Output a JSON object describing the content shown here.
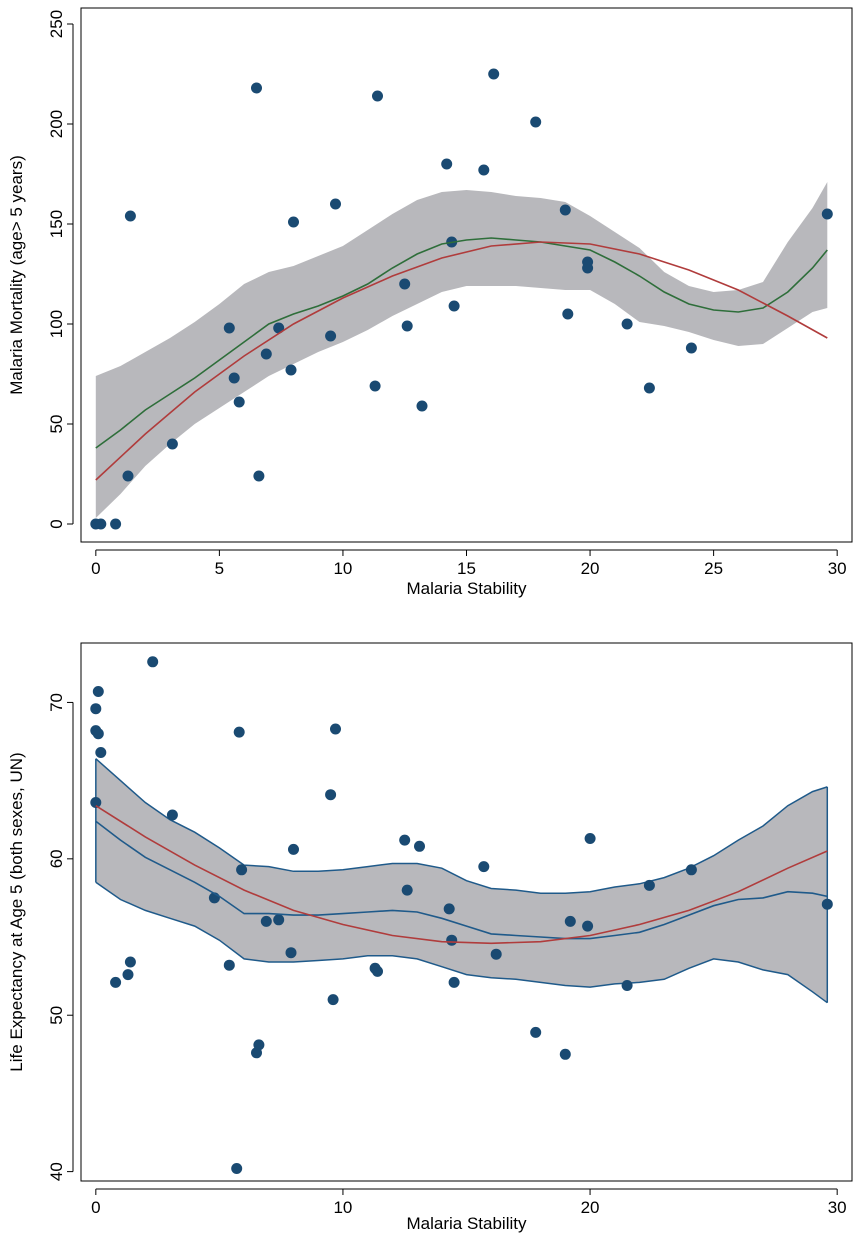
{
  "colors": {
    "points": "#1a4a72",
    "band": "#b8b8bc",
    "fit_quadratic": "#b03c3c",
    "top_lowess": "#2e6e3a",
    "bottom_lowess": "#1f5a8a"
  },
  "chart_data": [
    {
      "type": "scatter",
      "title": "",
      "xlabel": "Malaria Stability",
      "ylabel": "Malaria Mortality (age> 5 years)",
      "xlim": [
        -0.6,
        30.6
      ],
      "ylim": [
        -9,
        258
      ],
      "xticks": [
        0,
        5,
        10,
        15,
        20,
        25,
        30
      ],
      "xtick_labels": [
        "0",
        "5",
        "10",
        "15",
        "20",
        "25",
        "30"
      ],
      "yticks": [
        0,
        50,
        100,
        150,
        200,
        250
      ],
      "ytick_labels": [
        "0",
        "50",
        "100",
        "150",
        "200",
        "250"
      ],
      "grid": false,
      "points": [
        [
          0,
          0
        ],
        [
          0.2,
          0
        ],
        [
          0.8,
          0
        ],
        [
          1.3,
          24
        ],
        [
          1.4,
          154
        ],
        [
          3.1,
          40
        ],
        [
          5.4,
          98
        ],
        [
          5.6,
          73
        ],
        [
          5.8,
          61
        ],
        [
          6.5,
          218
        ],
        [
          6.6,
          24
        ],
        [
          6.9,
          85
        ],
        [
          7.4,
          98
        ],
        [
          7.9,
          77
        ],
        [
          8.0,
          151
        ],
        [
          9.5,
          94
        ],
        [
          9.7,
          160
        ],
        [
          11.3,
          69
        ],
        [
          11.4,
          214
        ],
        [
          12.5,
          120
        ],
        [
          12.6,
          99
        ],
        [
          13.2,
          59
        ],
        [
          14.2,
          180
        ],
        [
          14.4,
          141
        ],
        [
          14.5,
          109
        ],
        [
          15.7,
          177
        ],
        [
          16.1,
          225
        ],
        [
          17.8,
          201
        ],
        [
          19.0,
          157
        ],
        [
          19.1,
          105
        ],
        [
          19.9,
          128
        ],
        [
          19.9,
          131
        ],
        [
          21.5,
          100
        ],
        [
          22.4,
          68
        ],
        [
          24.1,
          88
        ],
        [
          29.6,
          155
        ]
      ],
      "series": [
        {
          "kind": "quadratic_fit",
          "x": [
            0,
            2,
            4,
            6,
            8,
            10,
            12,
            14,
            16,
            18,
            20,
            22,
            24,
            26,
            28,
            29.6
          ],
          "values": [
            22,
            45,
            66,
            84,
            100,
            113,
            124,
            133,
            139,
            141,
            140,
            135,
            127,
            117,
            104,
            93
          ]
        },
        {
          "kind": "lowess",
          "x": [
            0,
            1,
            2,
            3,
            4,
            5,
            6,
            7,
            8,
            9,
            10,
            11,
            12,
            13,
            14,
            15,
            16,
            17,
            18,
            19,
            20,
            21,
            22,
            23,
            24,
            25,
            26,
            27,
            28,
            29,
            29.6
          ],
          "values": [
            38,
            47,
            57,
            65,
            73,
            82,
            91,
            100,
            105,
            109,
            114,
            120,
            128,
            135,
            140,
            142,
            143,
            142,
            141,
            139,
            137,
            131,
            124,
            116,
            110,
            107,
            106,
            108,
            116,
            128,
            137
          ]
        },
        {
          "kind": "band",
          "x": [
            0,
            1,
            2,
            3,
            4,
            5,
            6,
            7,
            8,
            9,
            10,
            11,
            12,
            13,
            14,
            15,
            16,
            17,
            18,
            19,
            20,
            21,
            22,
            23,
            24,
            25,
            26,
            27,
            28,
            29,
            29.6
          ],
          "upper": [
            74,
            79,
            86,
            93,
            101,
            110,
            120,
            126,
            129,
            134,
            139,
            147,
            155,
            162,
            166,
            167,
            166,
            164,
            163,
            161,
            154,
            146,
            138,
            126,
            119,
            116,
            117,
            121,
            141,
            158,
            171
          ],
          "lower": [
            3,
            15,
            29,
            40,
            50,
            58,
            66,
            74,
            80,
            86,
            91,
            97,
            104,
            110,
            116,
            119,
            119,
            119,
            118,
            117,
            117,
            110,
            101,
            99,
            96,
            92,
            89,
            90,
            98,
            106,
            108
          ]
        }
      ]
    },
    {
      "type": "scatter",
      "title": "",
      "xlabel": "Malaria Stability",
      "ylabel": "Life Expectancy at Age 5 (both sexes, UN)",
      "xlim": [
        -0.6,
        30.6
      ],
      "ylim": [
        39.4,
        73.8
      ],
      "xticks": [
        0,
        10,
        20,
        30
      ],
      "xtick_labels": [
        "0",
        "10",
        "20",
        "30"
      ],
      "yticks": [
        40,
        50,
        60,
        70
      ],
      "ytick_labels": [
        "40",
        "50",
        "60",
        "70"
      ],
      "grid": false,
      "points": [
        [
          0,
          69.6
        ],
        [
          0,
          68.2
        ],
        [
          0.1,
          68.0
        ],
        [
          0.1,
          70.7
        ],
        [
          0.2,
          66.8
        ],
        [
          0,
          63.6
        ],
        [
          0.8,
          52.1
        ],
        [
          1.3,
          52.6
        ],
        [
          1.4,
          53.4
        ],
        [
          2.3,
          72.6
        ],
        [
          3.1,
          62.8
        ],
        [
          4.8,
          57.5
        ],
        [
          5.4,
          53.2
        ],
        [
          5.7,
          40.2
        ],
        [
          5.8,
          68.1
        ],
        [
          5.9,
          59.3
        ],
        [
          6.5,
          47.6
        ],
        [
          6.6,
          48.1
        ],
        [
          6.9,
          56.0
        ],
        [
          7.4,
          56.1
        ],
        [
          7.9,
          54.0
        ],
        [
          8.0,
          60.6
        ],
        [
          9.5,
          64.1
        ],
        [
          9.6,
          51.0
        ],
        [
          9.7,
          68.3
        ],
        [
          11.3,
          53.0
        ],
        [
          11.4,
          52.8
        ],
        [
          12.5,
          61.2
        ],
        [
          12.6,
          58.0
        ],
        [
          13.1,
          60.8
        ],
        [
          14.3,
          56.8
        ],
        [
          14.4,
          54.8
        ],
        [
          14.5,
          52.1
        ],
        [
          15.7,
          59.5
        ],
        [
          16.2,
          53.9
        ],
        [
          17.8,
          48.9
        ],
        [
          19.0,
          47.5
        ],
        [
          19.2,
          56.0
        ],
        [
          19.9,
          55.7
        ],
        [
          20.0,
          61.3
        ],
        [
          21.5,
          51.9
        ],
        [
          22.4,
          58.3
        ],
        [
          24.1,
          59.3
        ],
        [
          29.6,
          57.1
        ]
      ],
      "series": [
        {
          "kind": "quadratic_fit",
          "x": [
            0,
            2,
            4,
            6,
            8,
            10,
            12,
            14,
            16,
            18,
            20,
            22,
            24,
            26,
            28,
            29.6
          ],
          "values": [
            63.4,
            61.4,
            59.6,
            58.0,
            56.7,
            55.8,
            55.1,
            54.7,
            54.6,
            54.7,
            55.1,
            55.8,
            56.7,
            57.9,
            59.4,
            60.5
          ]
        },
        {
          "kind": "lowess",
          "x": [
            0,
            1,
            2,
            3,
            4,
            5,
            6,
            7,
            8,
            9,
            10,
            11,
            12,
            13,
            14,
            15,
            16,
            17,
            18,
            19,
            20,
            21,
            22,
            23,
            24,
            25,
            26,
            27,
            28,
            29,
            29.6
          ],
          "values": [
            62.4,
            61.2,
            60.1,
            59.3,
            58.5,
            57.6,
            56.5,
            56.5,
            56.4,
            56.4,
            56.5,
            56.6,
            56.7,
            56.6,
            56.2,
            55.7,
            55.2,
            55.1,
            55.0,
            54.9,
            54.9,
            55.1,
            55.3,
            55.8,
            56.4,
            57.0,
            57.4,
            57.5,
            57.9,
            57.8,
            57.6
          ]
        },
        {
          "kind": "band",
          "x": [
            0,
            1,
            2,
            3,
            4,
            5,
            6,
            7,
            8,
            9,
            10,
            11,
            12,
            13,
            14,
            15,
            16,
            17,
            18,
            19,
            20,
            21,
            22,
            23,
            24,
            25,
            26,
            27,
            28,
            29,
            29.6
          ],
          "upper": [
            66.4,
            65.0,
            63.6,
            62.5,
            61.7,
            60.7,
            59.6,
            59.5,
            59.2,
            59.2,
            59.3,
            59.5,
            59.7,
            59.7,
            59.4,
            58.6,
            58.1,
            58.0,
            57.8,
            57.8,
            57.9,
            58.2,
            58.4,
            58.8,
            59.4,
            60.2,
            61.2,
            62.1,
            63.4,
            64.3,
            64.6
          ],
          "lower": [
            58.5,
            57.4,
            56.7,
            56.2,
            55.7,
            54.8,
            53.6,
            53.4,
            53.4,
            53.5,
            53.6,
            53.8,
            53.8,
            53.6,
            53.1,
            52.6,
            52.4,
            52.3,
            52.1,
            51.9,
            51.8,
            52.0,
            52.1,
            52.3,
            53.0,
            53.6,
            53.4,
            52.9,
            52.6,
            51.5,
            50.8
          ]
        }
      ]
    }
  ]
}
